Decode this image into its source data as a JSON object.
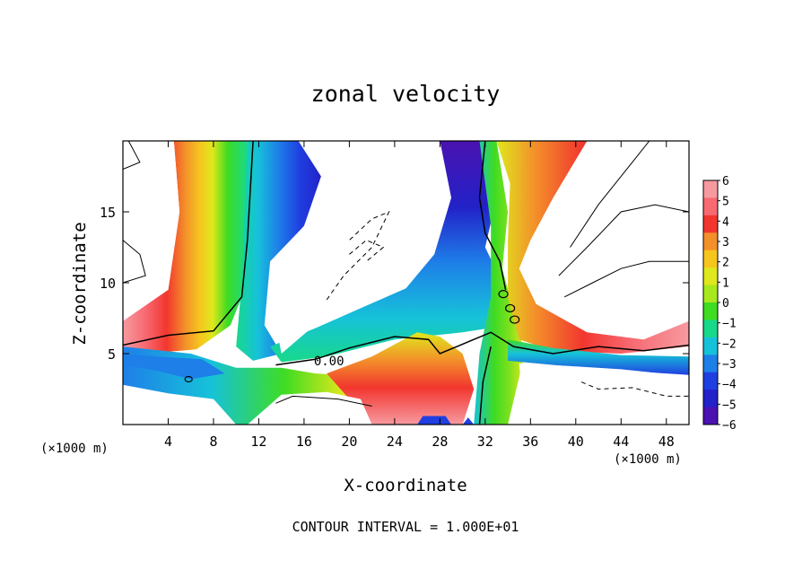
{
  "chart_data": {
    "type": "heatmap",
    "title": "zonal velocity",
    "xlabel": "X-coordinate",
    "ylabel": "Z-coordinate",
    "x_unit_left": "(×1000 m)",
    "x_unit_right": "(×1000 m)",
    "x_ticks": [
      4,
      8,
      12,
      16,
      20,
      24,
      28,
      32,
      36,
      40,
      44,
      48
    ],
    "y_ticks": [
      5,
      10,
      15
    ],
    "xlim": [
      0,
      50
    ],
    "ylim": [
      0,
      20
    ],
    "colorbar": {
      "ticks": [
        6,
        5,
        4,
        3,
        2,
        1,
        0,
        -1,
        -2,
        -3,
        -4,
        -5,
        -6
      ],
      "colors": [
        "#f79aa0",
        "#f76a72",
        "#f2362f",
        "#f3902a",
        "#f6c61e",
        "#dfe81c",
        "#a8e81e",
        "#3fdc22",
        "#18d98a",
        "#16c2d9",
        "#1e7fe8",
        "#1f3fe0",
        "#2222c8",
        "#4a12b0"
      ]
    },
    "contour_label": "0.00",
    "note": "CONTOUR INTERVAL = 1.000E+01"
  }
}
